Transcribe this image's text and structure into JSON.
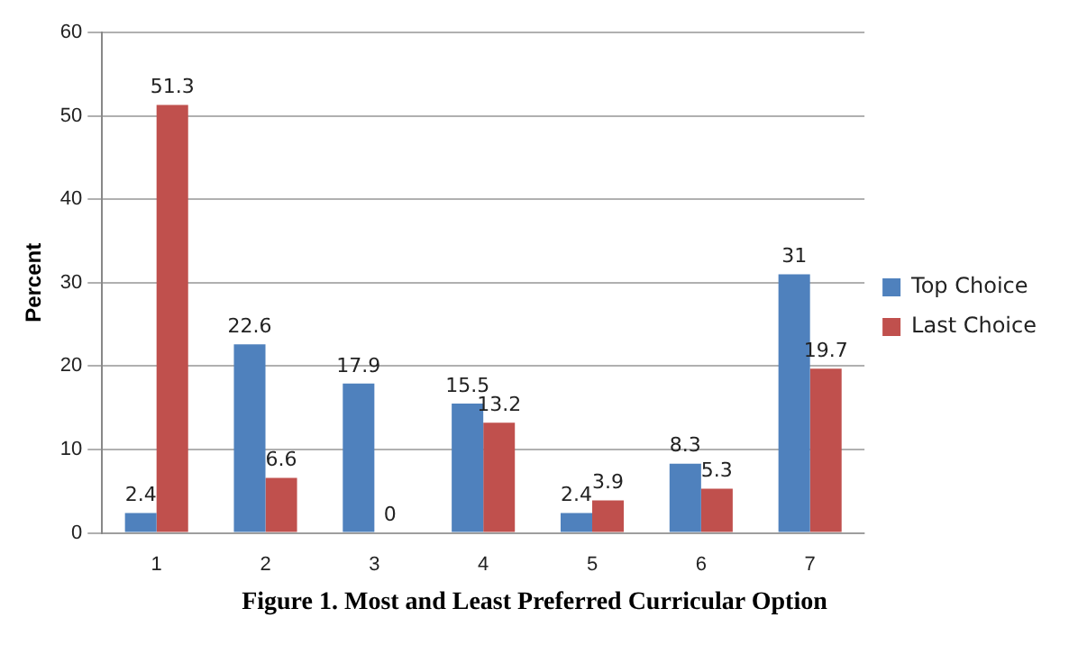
{
  "chart_data": {
    "type": "bar",
    "ylabel": "Percent",
    "categories": [
      "1",
      "2",
      "3",
      "4",
      "5",
      "6",
      "7"
    ],
    "series": [
      {
        "name": "Top Choice",
        "color": "#4f81bd",
        "values": [
          2.4,
          22.6,
          17.9,
          15.5,
          2.4,
          8.3,
          31
        ]
      },
      {
        "name": "Last Choice",
        "color": "#c0504d",
        "values": [
          51.3,
          6.6,
          0,
          13.2,
          3.9,
          5.3,
          19.7
        ]
      }
    ],
    "ylim": [
      0,
      60
    ],
    "yticks": [
      0,
      10,
      20,
      30,
      40,
      50,
      60
    ],
    "grid": "y",
    "legend": "right",
    "data_labels": true,
    "annotations": [
      "Figure 1. Most and Least Preferred Curricular Option"
    ]
  }
}
